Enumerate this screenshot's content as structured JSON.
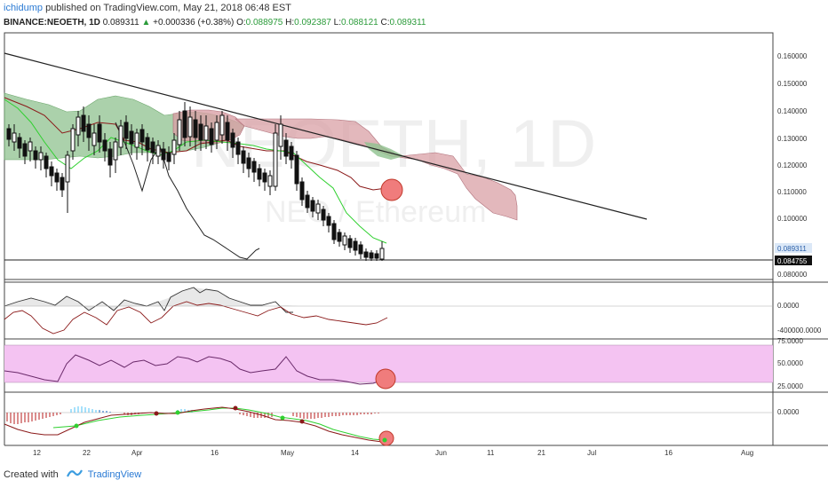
{
  "header": {
    "author": "ichidump",
    "published_text": "published on TradingView.com, May 21, 2018 06:48 EST"
  },
  "ticker": {
    "symbol": "BINANCE:NEOETH, 1D",
    "last": "0.089311",
    "change": "+0.000336 (+0.38%)",
    "open_label": "O:",
    "open": "0.088975",
    "high_label": "H:",
    "high": "0.092387",
    "low_label": "L:",
    "low": "0.088121",
    "close_label": "C:",
    "close": "0.089311"
  },
  "watermark": {
    "symbol": "NEOETH, 1D",
    "name": "NEO / Ethereum"
  },
  "price_axis": {
    "ticks": [
      "0.160000",
      "0.150000",
      "0.140000",
      "0.130000",
      "0.120000",
      "0.110000",
      "0.100000",
      "0.080000"
    ],
    "last_price_label": "0.089311",
    "line_price_label": "0.084755"
  },
  "indicator_axes": {
    "pane1": [
      "0.0000",
      "-400000.0000"
    ],
    "pane2": [
      "75.0000",
      "50.0000",
      "25.0000"
    ],
    "pane3": [
      "0.0000"
    ]
  },
  "time_axis": {
    "labels": [
      "12",
      "22",
      "Apr",
      "16",
      "May",
      "14",
      "Jun",
      "11",
      "21",
      "Jul",
      "16",
      "Aug"
    ]
  },
  "footer": {
    "created_with": "Created with",
    "brand": "TradingView"
  },
  "colors": {
    "cloud_bull": "#8fc28f",
    "cloud_bear": "#d9a0a6",
    "rsi_band": "#f4c3f2",
    "circle": "#f07c7c",
    "tenkan": "#2fd02f",
    "kijun": "#8b1a1a"
  },
  "chart_data": {
    "type": "candlestick",
    "symbol": "NEOETH",
    "interval": "1D",
    "last_close": 0.089311,
    "horizontal_line": 0.084755,
    "ylim": [
      0.077,
      0.165
    ],
    "indicators": [
      "Ichimoku Cloud",
      "Accumulation/Distribution",
      "RSI",
      "MACD"
    ]
  }
}
